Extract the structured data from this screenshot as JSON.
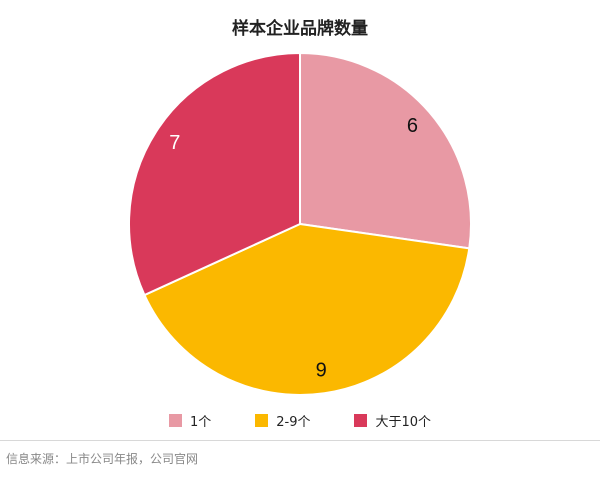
{
  "chart_data": {
    "type": "pie",
    "title": "样本企业品牌数量",
    "categories": [
      "1个",
      "2-9个",
      "大于10个"
    ],
    "values": [
      6,
      9,
      7
    ],
    "colors": [
      "#e899a4",
      "#fbb800",
      "#d9395a"
    ],
    "legend_position": "bottom"
  },
  "source": "信息来源：上市公司年报，公司官网"
}
